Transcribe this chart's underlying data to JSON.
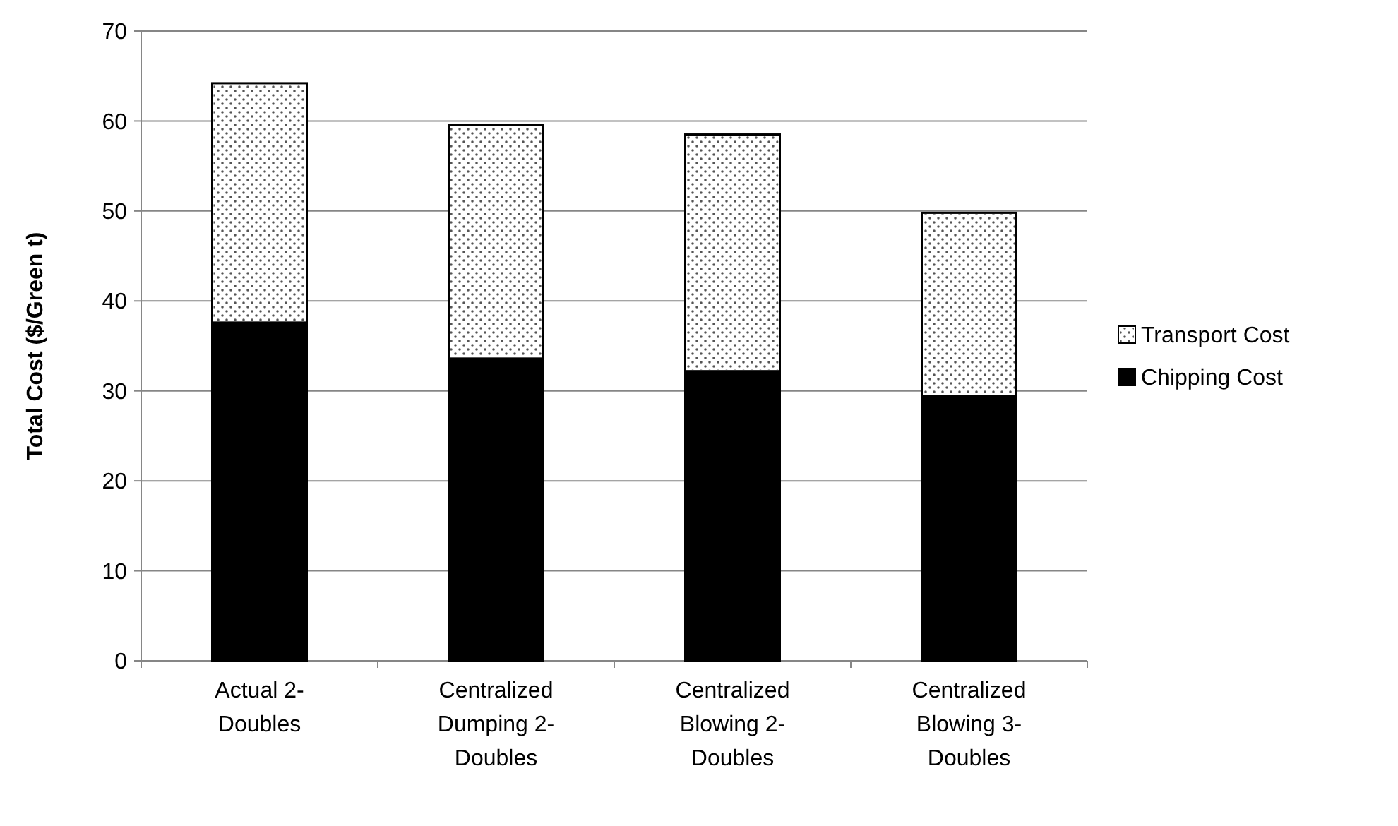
{
  "chart_data": {
    "type": "bar",
    "stacked": true,
    "ylabel": "Total Cost ($/Green t)",
    "categories": [
      "Actual 2-Doubles",
      "Centralized Dumping 2-Doubles",
      "Centralized Blowing  2-Doubles",
      "Centralized Blowing 3-Doubles"
    ],
    "series": [
      {
        "name": "Chipping Cost",
        "color": "#000000",
        "values": [
          37.6,
          33.6,
          32.2,
          29.4
        ]
      },
      {
        "name": "Transport Cost",
        "color": "#ffffff",
        "values": [
          26.6,
          26.0,
          26.3,
          20.4
        ]
      }
    ],
    "ylim": [
      0,
      70
    ],
    "yticks": [
      0,
      10,
      20,
      30,
      40,
      50,
      60,
      70
    ],
    "grid": "y",
    "legend": "right"
  }
}
